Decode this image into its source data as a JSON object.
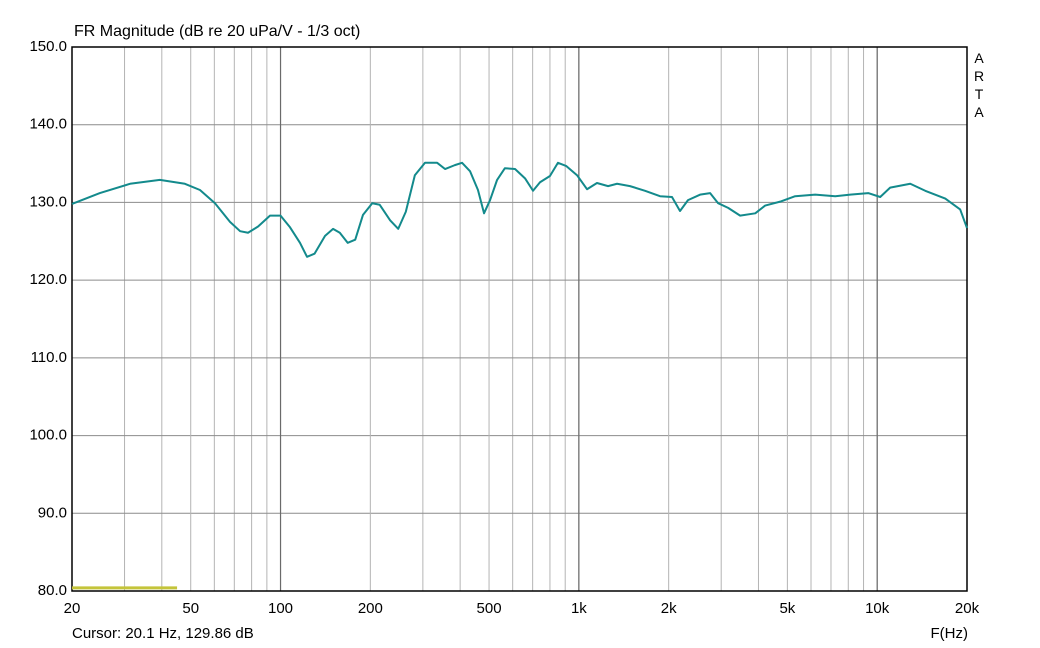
{
  "chart_data": {
    "type": "line",
    "title": "FR Magnitude (dB re 20 uPa/V - 1/3 oct)",
    "x_label": "F(Hz)",
    "cursor": "Cursor: 20.1 Hz, 129.86 dB",
    "watermark": "ARTA",
    "x_log": true,
    "xlim": [
      20,
      20000
    ],
    "ylim": [
      80,
      150
    ],
    "xticks": [
      20,
      50,
      100,
      200,
      500,
      {
        "value": 1000,
        "label": "1k"
      },
      {
        "value": 2000,
        "label": "2k"
      },
      {
        "value": 5000,
        "label": "5k"
      },
      {
        "value": 10000,
        "label": "10k"
      },
      {
        "value": 20000,
        "label": "20k"
      }
    ],
    "xgrid": [
      30,
      40,
      60,
      70,
      80,
      90,
      300,
      400,
      600,
      700,
      800,
      900,
      3000,
      4000,
      6000,
      7000,
      8000,
      9000
    ],
    "xgrid_major": [
      100,
      1000,
      10000
    ],
    "yticks": [
      {
        "value": 80,
        "label": "80.0"
      },
      {
        "value": 90,
        "label": "90.0"
      },
      {
        "value": 100,
        "label": "100.0"
      },
      {
        "value": 110,
        "label": "110.0"
      },
      {
        "value": 120,
        "label": "120.0"
      },
      {
        "value": 130,
        "label": "130.0"
      },
      {
        "value": 140,
        "label": "140.0"
      },
      {
        "value": 150,
        "label": "150.0"
      }
    ],
    "grid": true,
    "series": [
      {
        "color": "#138a8c",
        "x": [
          20,
          24.8,
          31.3,
          39.4,
          47.8,
          53.7,
          60.3,
          67.7,
          73.2,
          77.8,
          84.1,
          92.2,
          100,
          107.6,
          116.2,
          122.7,
          130,
          141,
          150,
          158,
          168,
          178,
          189,
          203,
          215,
          233,
          248,
          263,
          282,
          305,
          335,
          356,
          384,
          406,
          432,
          459,
          481,
          504,
          532,
          565,
          611,
          660,
          702,
          741,
          800,
          851,
          906,
          986,
          1065,
          1150,
          1253,
          1343,
          1484,
          1667,
          1871,
          2052,
          2183,
          2322,
          2548,
          2754,
          2930,
          3165,
          3472,
          3902,
          4212,
          4729,
          5309,
          6198,
          7233,
          8123,
          9332,
          10236,
          11053,
          12908,
          14488,
          16910,
          18972,
          20000
        ],
        "values": [
          129.8,
          131.2,
          132.4,
          132.9,
          132.4,
          131.6,
          129.9,
          127.5,
          126.3,
          126.1,
          126.9,
          128.3,
          128.3,
          126.8,
          124.8,
          123.0,
          123.4,
          125.7,
          126.6,
          126.1,
          124.8,
          125.2,
          128.4,
          129.9,
          129.7,
          127.7,
          126.6,
          128.8,
          133.5,
          135.1,
          135.1,
          134.3,
          134.8,
          135.1,
          134.0,
          131.6,
          128.6,
          130.3,
          132.9,
          134.4,
          134.3,
          133.1,
          131.5,
          132.6,
          133.4,
          135.1,
          134.7,
          133.5,
          131.7,
          132.5,
          132.1,
          132.4,
          132.1,
          131.5,
          130.8,
          130.7,
          128.9,
          130.3,
          131.0,
          131.2,
          129.9,
          129.3,
          128.3,
          128.6,
          129.6,
          130.1,
          130.8,
          131.0,
          130.8,
          131.0,
          131.2,
          130.7,
          131.9,
          132.4,
          131.5,
          130.5,
          129.1,
          126.7
        ]
      }
    ],
    "marker": {
      "color": "#c4c43a",
      "x": [
        20,
        45
      ],
      "values": [
        80.4,
        80.4
      ]
    }
  }
}
